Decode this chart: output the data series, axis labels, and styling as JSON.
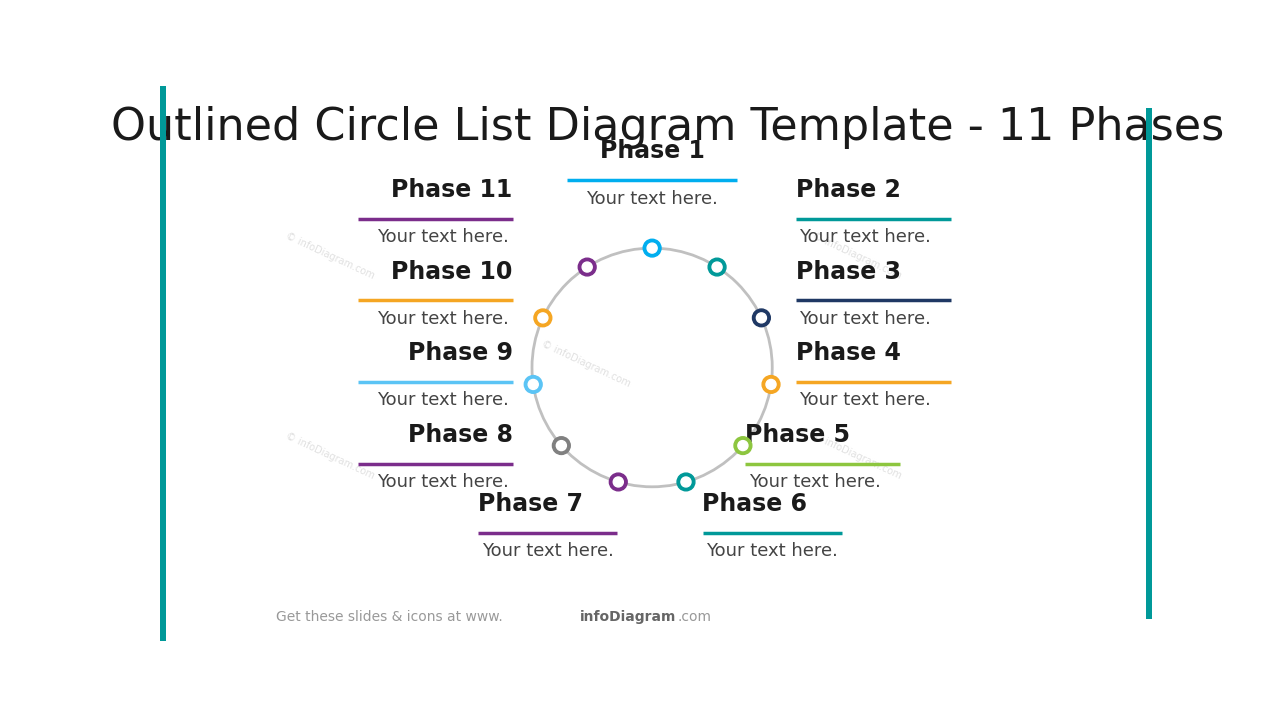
{
  "title": "Outlined Circle List Diagram Template - 11 Phases",
  "phases": [
    {
      "label": "Phase 1",
      "color": "#00AEEF"
    },
    {
      "label": "Phase 2",
      "color": "#009999"
    },
    {
      "label": "Phase 3",
      "color": "#1F3864"
    },
    {
      "label": "Phase 4",
      "color": "#F5A623"
    },
    {
      "label": "Phase 5",
      "color": "#8DC63F"
    },
    {
      "label": "Phase 6",
      "color": "#009999"
    },
    {
      "label": "Phase 7",
      "color": "#7B2D8B"
    },
    {
      "label": "Phase 8",
      "color": "#7B2D8B"
    },
    {
      "label": "Phase 9",
      "color": "#5BC4F5"
    },
    {
      "label": "Phase 10",
      "color": "#F5A623"
    },
    {
      "label": "Phase 11",
      "color": "#7B2D8B"
    }
  ],
  "dot_colors": [
    "#00AEEF",
    "#009999",
    "#1F3864",
    "#F5A623",
    "#8DC63F",
    "#009999",
    "#7B2D8B",
    "#808080",
    "#5BC4F5",
    "#F5A623",
    "#7B2D8B"
  ],
  "text": "Your text here.",
  "circle_color": "#C0C0C0",
  "bg_color": "#FFFFFF",
  "title_fontsize": 32,
  "phase_fontsize": 17,
  "text_fontsize": 13,
  "accent_color": "#009999",
  "footer_text": "Get these slides & icons at www.",
  "footer_bold": "infoDiagram",
  "footer_end": ".com"
}
